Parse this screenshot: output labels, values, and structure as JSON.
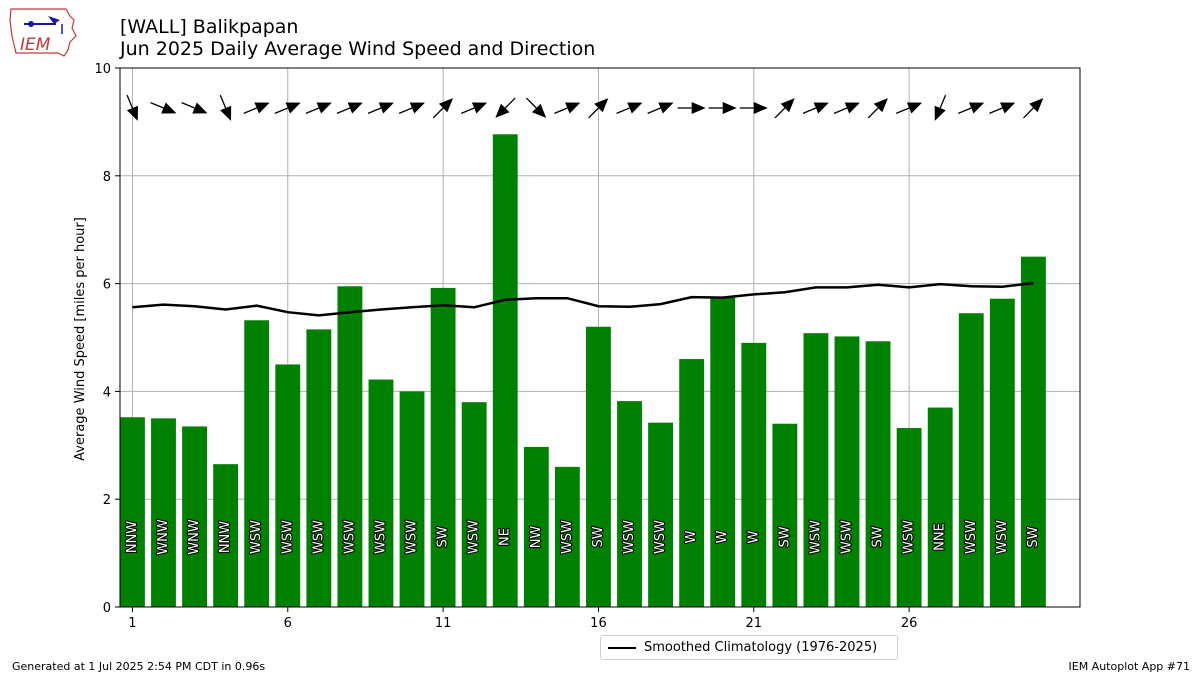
{
  "header": {
    "station": "[WALL] Balikpapan",
    "subtitle": "Jun 2025 Daily Average Wind Speed and Direction"
  },
  "logo": {
    "text": "IEM",
    "icon": "iem-iowa-logo-icon"
  },
  "footer": {
    "generated": "Generated at 1 Jul 2025 2:54 PM CDT in 0.96s",
    "app": "IEM Autoplot App #71"
  },
  "legend": {
    "label": "Smoothed Climatology (1976-2025)"
  },
  "colors": {
    "bar": "#008000",
    "line": "#000000",
    "grid": "#b0b0b0",
    "arrow": "#000000"
  },
  "chart_data": {
    "type": "bar",
    "title": "[WALL] Balikpapan\nJun 2025 Daily Average Wind Speed and Direction",
    "xlabel": "",
    "ylabel": "Average Wind Speed [miles per hour]",
    "xlim": [
      0.6,
      31.5
    ],
    "ylim": [
      0,
      10
    ],
    "grid": true,
    "legend_position": "bottom-center",
    "x_ticks": [
      1,
      6,
      11,
      16,
      21,
      26
    ],
    "y_ticks": [
      0,
      2,
      4,
      6,
      8,
      10
    ],
    "days": [
      1,
      2,
      3,
      4,
      5,
      6,
      7,
      8,
      9,
      10,
      11,
      12,
      13,
      14,
      15,
      16,
      17,
      18,
      19,
      20,
      21,
      22,
      23,
      24,
      25,
      26,
      27,
      28,
      29,
      30
    ],
    "series": [
      {
        "name": "",
        "type": "bar",
        "values": [
          3.52,
          3.5,
          3.35,
          2.65,
          5.32,
          4.5,
          5.15,
          5.95,
          4.22,
          4.0,
          5.92,
          3.8,
          8.77,
          2.97,
          2.6,
          5.2,
          3.82,
          3.42,
          4.6,
          5.75,
          4.9,
          3.4,
          5.08,
          5.02,
          4.93,
          3.32,
          3.7,
          5.45,
          5.72,
          6.5
        ],
        "direction_labels": [
          "NNW",
          "WNW",
          "WNW",
          "NNW",
          "WSW",
          "WSW",
          "WSW",
          "WSW",
          "WSW",
          "WSW",
          "SW",
          "WSW",
          "NE",
          "NW",
          "WSW",
          "SW",
          "WSW",
          "WSW",
          "W",
          "W",
          "W",
          "SW",
          "WSW",
          "WSW",
          "SW",
          "WSW",
          "NNE",
          "WSW",
          "WSW",
          "SW"
        ]
      },
      {
        "name": "Smoothed Climatology (1976-2025)",
        "type": "line",
        "values": [
          5.56,
          5.61,
          5.58,
          5.52,
          5.59,
          5.47,
          5.41,
          5.47,
          5.52,
          5.56,
          5.6,
          5.56,
          5.7,
          5.73,
          5.73,
          5.58,
          5.57,
          5.62,
          5.75,
          5.74,
          5.8,
          5.84,
          5.93,
          5.93,
          5.98,
          5.93,
          5.99,
          5.95,
          5.94,
          6.01
        ]
      }
    ],
    "wind_direction_deg": [
      337.5,
      292.5,
      292.5,
      337.5,
      247.5,
      247.5,
      247.5,
      247.5,
      247.5,
      247.5,
      225,
      247.5,
      45,
      315,
      247.5,
      225,
      247.5,
      247.5,
      270,
      270,
      270,
      225,
      247.5,
      247.5,
      225,
      247.5,
      22.5,
      247.5,
      247.5,
      225
    ]
  }
}
